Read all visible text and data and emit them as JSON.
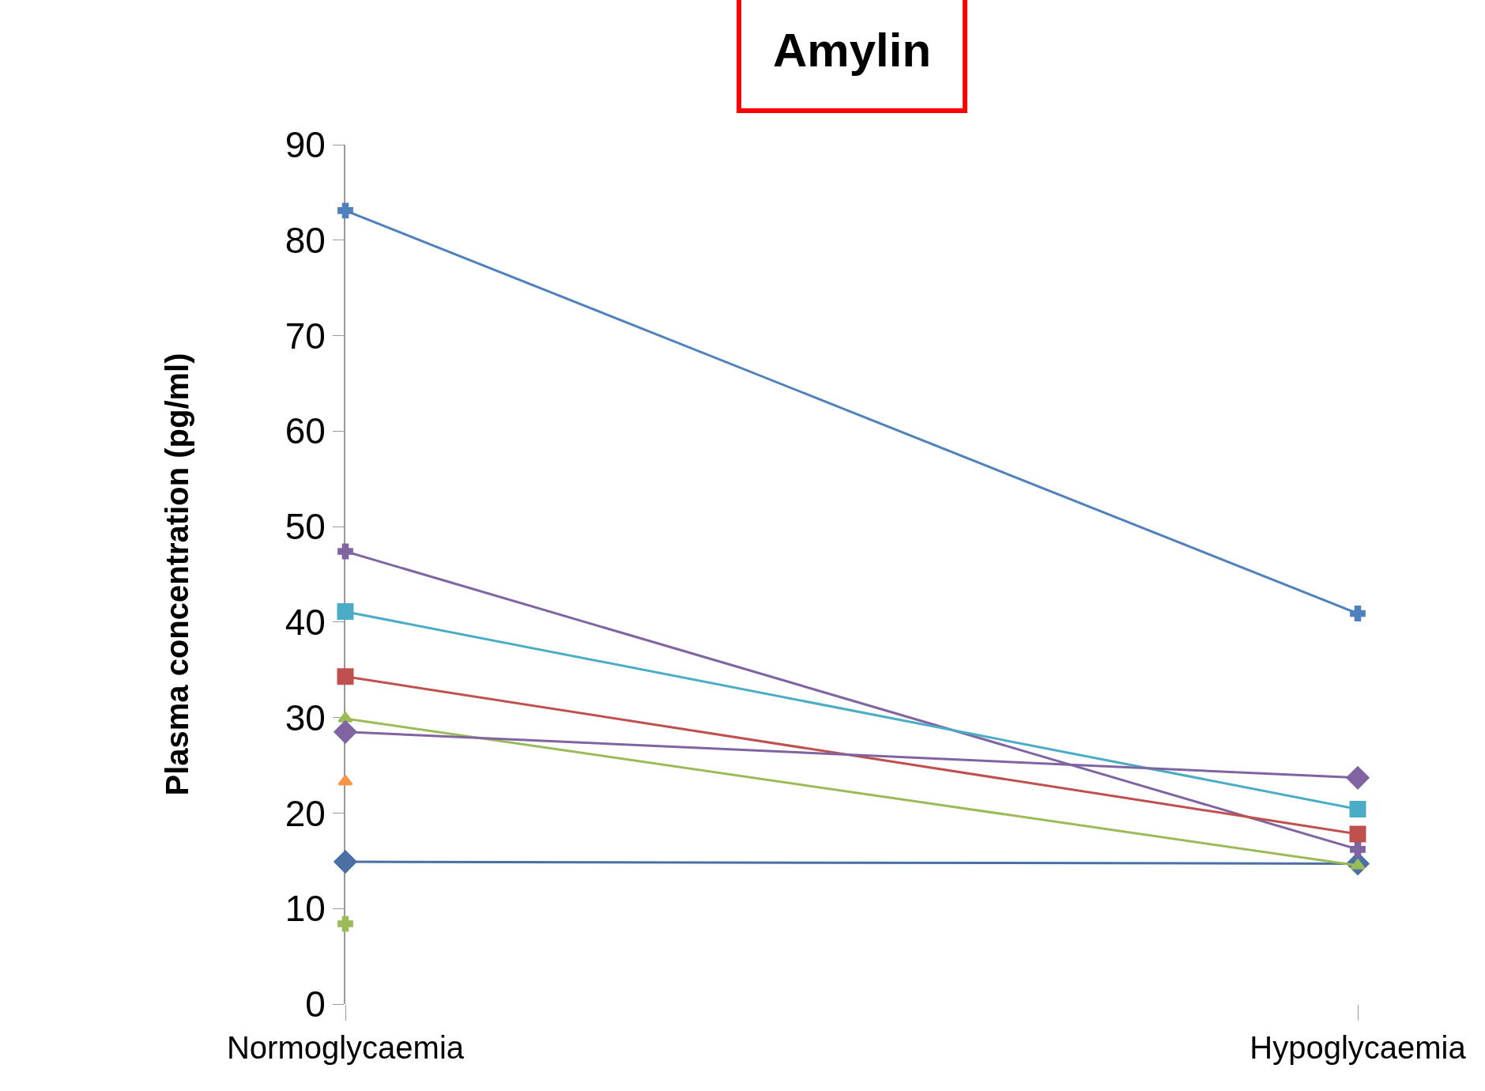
{
  "chart_data": {
    "type": "line",
    "title": "Amylin",
    "ylabel": "Plasma concentration (pg/ml)",
    "categories": [
      "Normoglycaemia",
      "Hypoglycaemia"
    ],
    "series": [
      {
        "color": "#4a6fa5",
        "marker": "diamond",
        "values": [
          14.9,
          14.7
        ]
      },
      {
        "color": "#4f81bd",
        "marker": "cross",
        "values": [
          83.1,
          40.9
        ]
      },
      {
        "color": "#8064a2",
        "marker": "cross",
        "values": [
          47.4,
          16.2
        ]
      },
      {
        "color": "#4bacc6",
        "marker": "square",
        "values": [
          41.1,
          20.4
        ]
      },
      {
        "color": "#c0504d",
        "marker": "square",
        "values": [
          34.3,
          17.8
        ]
      },
      {
        "color": "#9bbb59",
        "marker": "triangle",
        "values": [
          29.9,
          14.5
        ]
      },
      {
        "color": "#8064a2",
        "marker": "diamond",
        "values": [
          28.5,
          23.7
        ]
      },
      {
        "color": "#f79646",
        "marker": "triangle",
        "values": [
          23.3,
          null
        ]
      },
      {
        "color": "#9bbb59",
        "marker": "cross",
        "values": [
          8.4,
          null
        ]
      }
    ],
    "ylim": [
      0,
      90
    ],
    "yticks": [
      0,
      10,
      20,
      30,
      40,
      50,
      60,
      70,
      80,
      90
    ]
  }
}
